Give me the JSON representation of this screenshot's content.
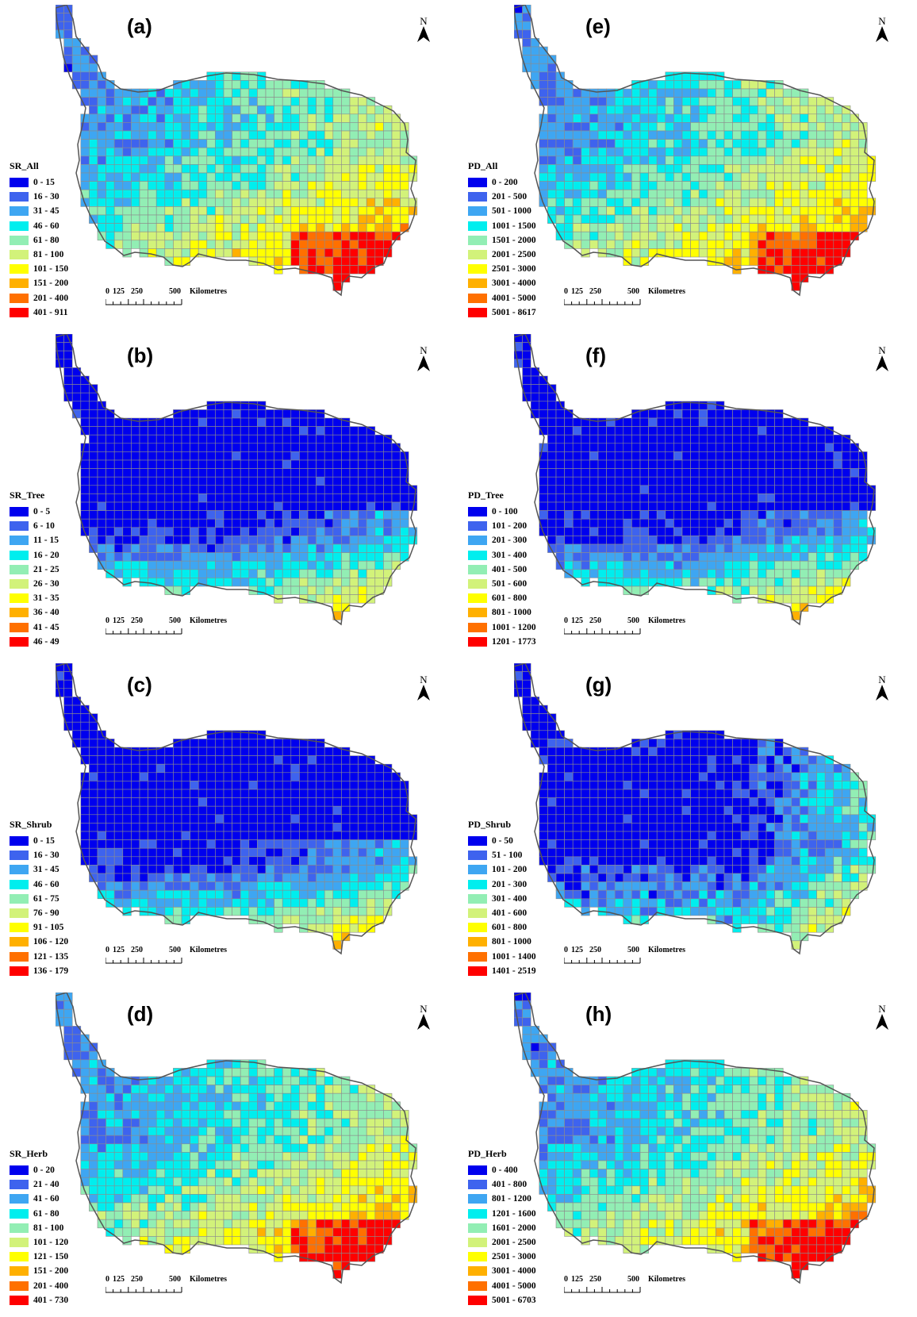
{
  "north_label": "N",
  "scale": {
    "ticks": [
      "0",
      "125",
      "250",
      "500"
    ],
    "unit": "Kilometres"
  },
  "panels": [
    {
      "letter": "(a)",
      "title": "SR_All",
      "palette": "full",
      "classes": [
        "0 - 15",
        "16 - 30",
        "31 - 45",
        "46 - 60",
        "61 - 80",
        "81 - 100",
        "101 - 150",
        "151 - 200",
        "201 - 400",
        "401 - 911"
      ]
    },
    {
      "letter": "(b)",
      "title": "SR_Tree",
      "palette": "low",
      "classes": [
        "0 - 5",
        "6 - 10",
        "11 - 15",
        "16 - 20",
        "21 - 25",
        "26 - 30",
        "31 - 35",
        "36 - 40",
        "41 - 45",
        "46 - 49"
      ]
    },
    {
      "letter": "(c)",
      "title": "SR_Shrub",
      "palette": "low",
      "classes": [
        "0 - 15",
        "16 - 30",
        "31 - 45",
        "46 - 60",
        "61 - 75",
        "76 - 90",
        "91 - 105",
        "106 - 120",
        "121 - 135",
        "136 - 179"
      ]
    },
    {
      "letter": "(d)",
      "title": "SR_Herb",
      "palette": "full",
      "classes": [
        "0 - 20",
        "21 - 40",
        "41 - 60",
        "61 - 80",
        "81 - 100",
        "101 - 120",
        "121 - 150",
        "151 - 200",
        "201 - 400",
        "401 - 730"
      ]
    },
    {
      "letter": "(e)",
      "title": "PD_All",
      "palette": "full",
      "classes": [
        "0 - 200",
        "201 - 500",
        "501 - 1000",
        "1001 - 1500",
        "1501 - 2000",
        "2001 - 2500",
        "2501 - 3000",
        "3001 - 4000",
        "4001 - 5000",
        "5001 - 8617"
      ]
    },
    {
      "letter": "(f)",
      "title": "PD_Tree",
      "palette": "low",
      "classes": [
        "0 - 100",
        "101 - 200",
        "201 - 300",
        "301 - 400",
        "401 - 500",
        "501 - 600",
        "601 - 800",
        "801 - 1000",
        "1001 - 1200",
        "1201 - 1773"
      ]
    },
    {
      "letter": "(g)",
      "title": "PD_Shrub",
      "palette": "mid",
      "classes": [
        "0 - 50",
        "51 - 100",
        "101 - 200",
        "201 - 300",
        "301 - 400",
        "401 - 600",
        "601 - 800",
        "801 - 1000",
        "1001 - 1400",
        "1401 - 2519"
      ]
    },
    {
      "letter": "(h)",
      "title": "PD_Herb",
      "palette": "full",
      "classes": [
        "0 - 400",
        "401 - 800",
        "801 - 1200",
        "1201 - 1600",
        "1601 - 2000",
        "2001 - 2500",
        "2501 - 3000",
        "3001 - 4000",
        "4001 - 5000",
        "5001 - 6703"
      ]
    }
  ],
  "colors": [
    "#0000ee",
    "#3e63ee",
    "#3ea6f2",
    "#00eeee",
    "#92eeb4",
    "#d2f27a",
    "#ffff00",
    "#ffb000",
    "#ff7000",
    "#ff0000"
  ],
  "grid_line_color": "#8c8c8c",
  "outline_color": "#555555"
}
